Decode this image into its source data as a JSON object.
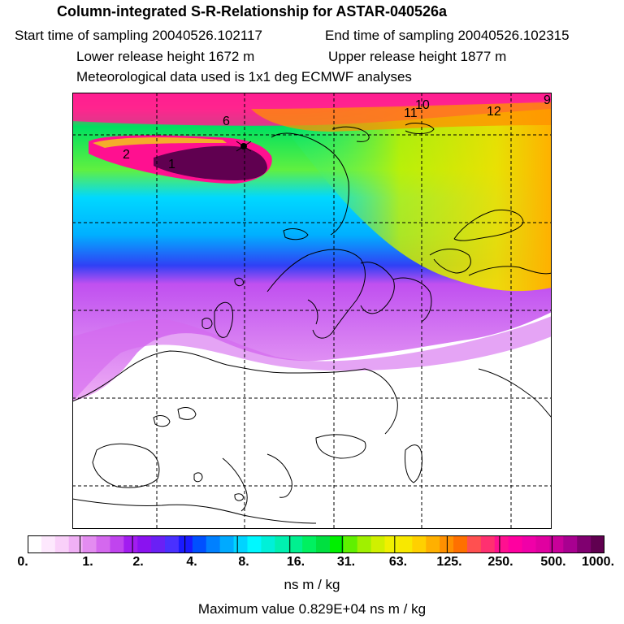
{
  "header": {
    "title": "Column-integrated S-R-Relationship for ASTAR-040526a",
    "start_time": "Start time of sampling 20040526.102117",
    "end_time": "End time of sampling 20040526.102315",
    "lower_release": "Lower release height 1672 m",
    "upper_release": "Upper release height 1877 m",
    "met_data": "Meteorological data used is 1x1 deg ECMWF analyses"
  },
  "map": {
    "trajectory_labels": [
      "1",
      "2",
      "6",
      "11",
      "10",
      "12",
      "9"
    ]
  },
  "colorbar": {
    "labels": [
      "0.",
      "1.",
      "2.",
      "4.",
      "8.",
      "16.",
      "31.",
      "63.",
      "125.",
      "250.",
      "500.",
      "1000."
    ],
    "colors": [
      "#ffffff",
      "#fde8fd",
      "#f9d0f9",
      "#f0b0f5",
      "#e38cf0",
      "#d468ee",
      "#c044ee",
      "#a21cf0",
      "#8a12f0",
      "#6a20f5",
      "#4a30ff",
      "#1a1aff",
      "#0050ff",
      "#0080ff",
      "#00aaff",
      "#00d4ff",
      "#00f8ff",
      "#00f0d8",
      "#00f0b0",
      "#00f090",
      "#00f060",
      "#00e040",
      "#00f000",
      "#60f000",
      "#a0f000",
      "#d0f000",
      "#f0f000",
      "#f8e800",
      "#ffd000",
      "#ffb000",
      "#ff9000",
      "#ff7000",
      "#ff5050",
      "#ff3070",
      "#ff1090",
      "#ff00a0",
      "#f000a8",
      "#e000a0",
      "#c8009a",
      "#a80090",
      "#800070",
      "#600050"
    ],
    "unit": "ns m / kg"
  },
  "footer": {
    "max_value": "Maximum value  0.829E+04 ns m / kg"
  }
}
